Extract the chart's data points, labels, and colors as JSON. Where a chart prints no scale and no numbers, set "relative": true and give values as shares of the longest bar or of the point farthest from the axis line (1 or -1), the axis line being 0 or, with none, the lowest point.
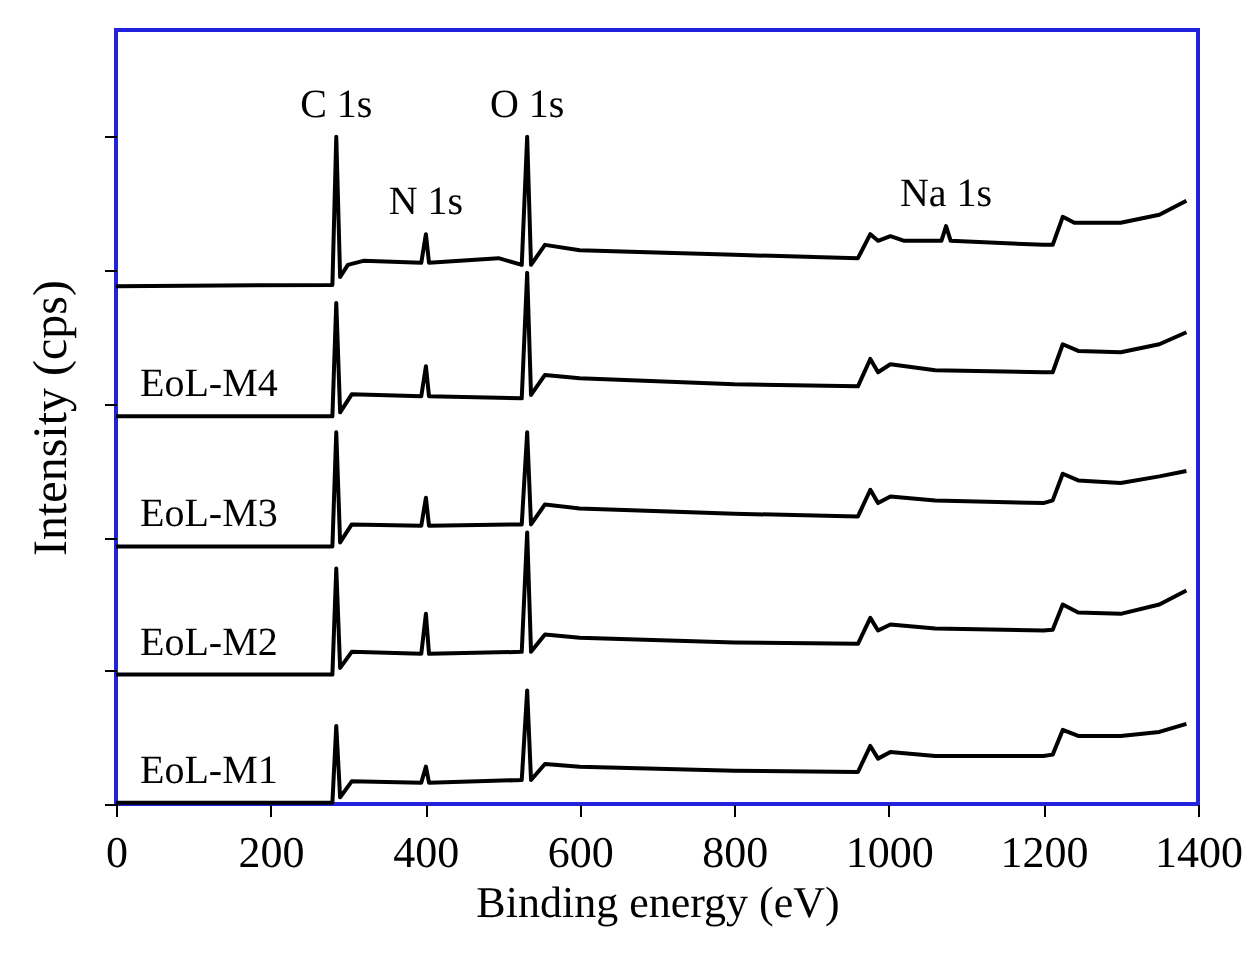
{
  "chart_data": {
    "type": "line",
    "relative": true,
    "legend": "left",
    "xlabel": "Binding energy (eV)",
    "ylabel": "Intensity (cps)",
    "xlim": [
      0,
      1400
    ],
    "xticks": [
      0,
      200,
      400,
      600,
      800,
      1000,
      1200,
      1400
    ],
    "annotations": [
      {
        "text": "C 1s",
        "x": 285,
        "y": 1.0
      },
      {
        "text": "N 1s",
        "x": 401,
        "y": 0.854
      },
      {
        "text": "O 1s",
        "x": 532,
        "y": 1.0
      },
      {
        "text": "Na 1s",
        "x": 1074,
        "y": 0.866
      }
    ],
    "series": [
      {
        "color": "#000000",
        "x": [
          0,
          280,
          285,
          290,
          300,
          320,
          395,
          401,
          405,
          495,
          525,
          532,
          537,
          555,
          600,
          800,
          960,
          976,
          986,
          1002,
          1020,
          1068,
          1074,
          1080,
          1200,
          1212,
          1225,
          1240,
          1300,
          1350,
          1385
        ],
        "values": [
          0.776,
          0.778,
          1.0,
          0.79,
          0.808,
          0.814,
          0.811,
          0.854,
          0.811,
          0.818,
          0.808,
          1.0,
          0.808,
          0.838,
          0.83,
          0.823,
          0.818,
          0.854,
          0.844,
          0.851,
          0.844,
          0.844,
          0.866,
          0.844,
          0.838,
          0.838,
          0.88,
          0.871,
          0.871,
          0.883,
          0.904
        ]
      },
      {
        "name": "EoL-M4",
        "color": "#000000",
        "x": [
          0,
          280,
          285,
          290,
          305,
          395,
          401,
          405,
          525,
          532,
          537,
          555,
          600,
          800,
          960,
          976,
          986,
          1002,
          1060,
          1200,
          1212,
          1225,
          1245,
          1300,
          1350,
          1385
        ],
        "values": [
          0.581,
          0.581,
          0.751,
          0.587,
          0.614,
          0.611,
          0.656,
          0.611,
          0.608,
          0.796,
          0.613,
          0.643,
          0.638,
          0.629,
          0.626,
          0.667,
          0.647,
          0.659,
          0.65,
          0.647,
          0.647,
          0.689,
          0.679,
          0.677,
          0.689,
          0.707
        ]
      },
      {
        "name": "EoL-M3",
        "color": "#000000",
        "x": [
          0,
          280,
          285,
          290,
          305,
          395,
          401,
          405,
          525,
          532,
          537,
          555,
          600,
          800,
          960,
          976,
          986,
          1002,
          1060,
          1200,
          1212,
          1225,
          1245,
          1300,
          1350,
          1385
        ],
        "values": [
          0.386,
          0.386,
          0.557,
          0.392,
          0.419,
          0.417,
          0.459,
          0.417,
          0.419,
          0.557,
          0.419,
          0.449,
          0.443,
          0.435,
          0.431,
          0.471,
          0.451,
          0.461,
          0.455,
          0.451,
          0.455,
          0.495,
          0.485,
          0.481,
          0.491,
          0.499
        ]
      },
      {
        "name": "EoL-M2",
        "color": "#000000",
        "x": [
          0,
          280,
          285,
          290,
          305,
          395,
          401,
          405,
          525,
          532,
          537,
          555,
          600,
          800,
          960,
          976,
          986,
          1002,
          1060,
          1200,
          1212,
          1225,
          1245,
          1300,
          1350,
          1385
        ],
        "values": [
          0.194,
          0.194,
          0.353,
          0.204,
          0.228,
          0.225,
          0.285,
          0.225,
          0.228,
          0.407,
          0.228,
          0.254,
          0.249,
          0.242,
          0.24,
          0.279,
          0.26,
          0.269,
          0.263,
          0.26,
          0.261,
          0.299,
          0.287,
          0.285,
          0.299,
          0.32
        ]
      },
      {
        "name": "EoL-M1",
        "color": "#000000",
        "x": [
          0,
          280,
          285,
          290,
          305,
          395,
          401,
          405,
          525,
          532,
          537,
          555,
          600,
          800,
          960,
          976,
          986,
          1002,
          1060,
          1200,
          1212,
          1225,
          1245,
          1300,
          1350,
          1385
        ],
        "values": [
          0.002,
          0.002,
          0.117,
          0.01,
          0.034,
          0.032,
          0.056,
          0.032,
          0.036,
          0.17,
          0.036,
          0.06,
          0.056,
          0.05,
          0.048,
          0.087,
          0.068,
          0.078,
          0.072,
          0.072,
          0.074,
          0.111,
          0.102,
          0.102,
          0.108,
          0.12
        ]
      }
    ]
  }
}
